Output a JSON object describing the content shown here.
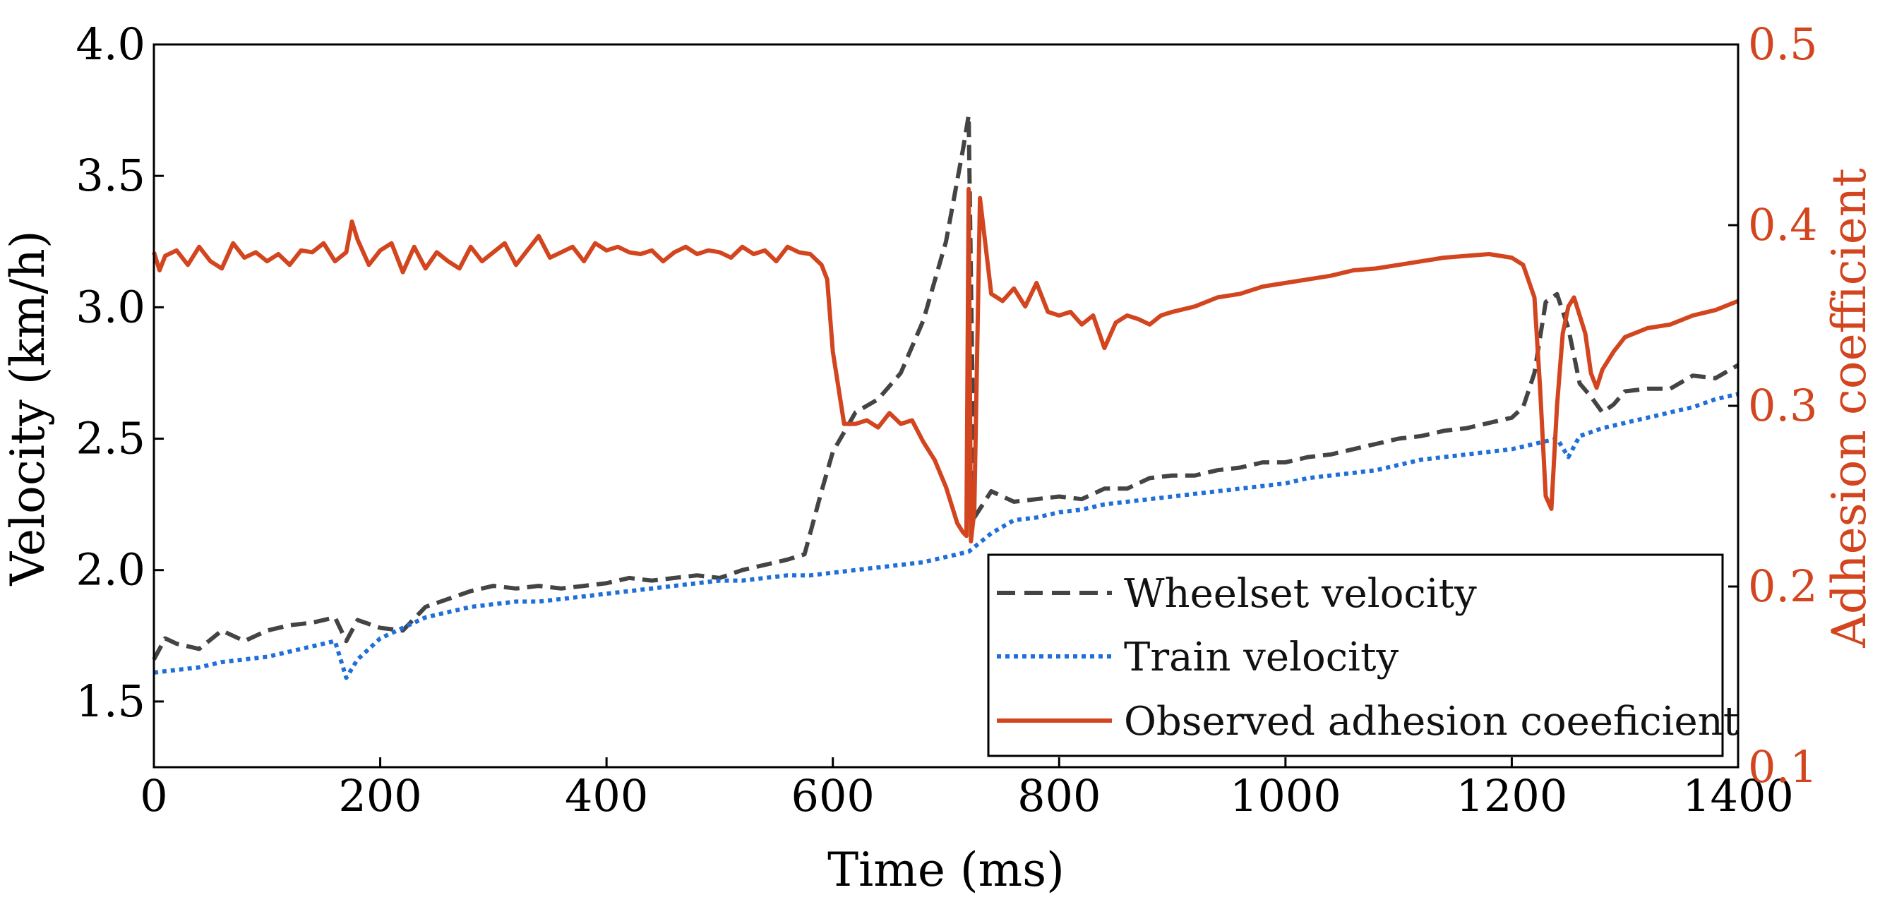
{
  "chart_data": {
    "type": "line",
    "title": "",
    "xlabel": "Time (ms)",
    "ylabel_left": "Velocity (km/h)",
    "ylabel_right": "Adhesion coefficient",
    "xlim": [
      0,
      1400
    ],
    "ylim_left": [
      1.25,
      4.0
    ],
    "ylim_right": [
      0.1,
      0.5
    ],
    "x_ticks": [
      "0",
      "200",
      "400",
      "600",
      "800",
      "1000",
      "1200",
      "1400"
    ],
    "y_ticks_left": [
      "1.5",
      "2.0",
      "2.5",
      "3.0",
      "3.5",
      "4.0"
    ],
    "y_ticks_right": [
      "0.1",
      "0.2",
      "0.3",
      "0.4",
      "0.5"
    ],
    "grid": false,
    "legend_position": "bottom-right",
    "colors": {
      "wheelset": "#444444",
      "train": "#1f6fd8",
      "adhesion": "#d2451e",
      "right_axis": "#d2451e"
    },
    "series": [
      {
        "name": "Wheelset velocity",
        "axis": "left",
        "style": "dashed",
        "x": [
          0,
          10,
          20,
          40,
          60,
          80,
          100,
          120,
          140,
          160,
          170,
          180,
          200,
          220,
          240,
          260,
          280,
          300,
          320,
          340,
          360,
          380,
          400,
          420,
          440,
          460,
          480,
          500,
          520,
          540,
          560,
          575,
          590,
          600,
          620,
          640,
          660,
          680,
          700,
          715,
          720,
          725,
          740,
          760,
          780,
          800,
          820,
          840,
          860,
          880,
          900,
          920,
          940,
          960,
          980,
          1000,
          1020,
          1040,
          1060,
          1080,
          1100,
          1120,
          1140,
          1160,
          1180,
          1200,
          1210,
          1220,
          1230,
          1240,
          1250,
          1260,
          1270,
          1280,
          1290,
          1300,
          1320,
          1340,
          1360,
          1380,
          1400
        ],
        "values": [
          1.66,
          1.74,
          1.72,
          1.7,
          1.77,
          1.73,
          1.77,
          1.79,
          1.8,
          1.82,
          1.73,
          1.81,
          1.78,
          1.77,
          1.86,
          1.89,
          1.92,
          1.94,
          1.93,
          1.94,
          1.93,
          1.94,
          1.95,
          1.97,
          1.96,
          1.97,
          1.98,
          1.97,
          2.0,
          2.02,
          2.04,
          2.06,
          2.3,
          2.45,
          2.6,
          2.65,
          2.75,
          2.95,
          3.25,
          3.6,
          3.73,
          2.2,
          2.3,
          2.26,
          2.27,
          2.28,
          2.27,
          2.31,
          2.31,
          2.35,
          2.36,
          2.36,
          2.38,
          2.39,
          2.41,
          2.41,
          2.43,
          2.44,
          2.46,
          2.48,
          2.5,
          2.51,
          2.53,
          2.54,
          2.56,
          2.58,
          2.62,
          2.75,
          3.02,
          3.05,
          2.92,
          2.71,
          2.66,
          2.6,
          2.63,
          2.68,
          2.69,
          2.69,
          2.74,
          2.73,
          2.78
        ]
      },
      {
        "name": "Train velocity",
        "axis": "left",
        "style": "dotted",
        "x": [
          0,
          20,
          40,
          60,
          80,
          100,
          120,
          140,
          160,
          170,
          180,
          200,
          220,
          240,
          260,
          280,
          300,
          320,
          340,
          360,
          380,
          400,
          420,
          440,
          460,
          480,
          500,
          520,
          540,
          560,
          580,
          600,
          620,
          640,
          660,
          680,
          700,
          720,
          740,
          760,
          780,
          800,
          820,
          840,
          860,
          880,
          900,
          920,
          940,
          960,
          980,
          1000,
          1020,
          1040,
          1060,
          1080,
          1100,
          1120,
          1140,
          1160,
          1180,
          1200,
          1220,
          1240,
          1250,
          1260,
          1280,
          1300,
          1320,
          1340,
          1360,
          1380,
          1400
        ],
        "values": [
          1.61,
          1.62,
          1.63,
          1.65,
          1.66,
          1.67,
          1.69,
          1.71,
          1.73,
          1.59,
          1.66,
          1.74,
          1.78,
          1.82,
          1.84,
          1.86,
          1.87,
          1.88,
          1.88,
          1.89,
          1.9,
          1.91,
          1.92,
          1.93,
          1.94,
          1.95,
          1.96,
          1.96,
          1.97,
          1.98,
          1.98,
          1.99,
          2.0,
          2.01,
          2.02,
          2.03,
          2.05,
          2.07,
          2.14,
          2.19,
          2.2,
          2.22,
          2.23,
          2.25,
          2.26,
          2.27,
          2.28,
          2.29,
          2.3,
          2.31,
          2.32,
          2.33,
          2.35,
          2.36,
          2.37,
          2.38,
          2.4,
          2.42,
          2.43,
          2.44,
          2.45,
          2.46,
          2.48,
          2.5,
          2.43,
          2.51,
          2.54,
          2.56,
          2.58,
          2.6,
          2.62,
          2.65,
          2.67
        ]
      },
      {
        "name": "Observed adhesion coeeficient",
        "axis": "right",
        "style": "solid",
        "x": [
          0,
          5,
          10,
          20,
          30,
          40,
          50,
          60,
          70,
          80,
          90,
          100,
          110,
          120,
          130,
          140,
          150,
          160,
          170,
          175,
          180,
          190,
          200,
          210,
          220,
          230,
          240,
          250,
          260,
          270,
          280,
          290,
          300,
          310,
          320,
          330,
          340,
          350,
          360,
          370,
          380,
          390,
          400,
          410,
          420,
          430,
          440,
          450,
          460,
          470,
          480,
          490,
          500,
          510,
          520,
          530,
          540,
          550,
          560,
          570,
          580,
          590,
          595,
          600,
          610,
          620,
          630,
          640,
          650,
          660,
          670,
          680,
          690,
          700,
          710,
          715,
          718,
          720,
          722,
          725,
          730,
          740,
          750,
          760,
          770,
          780,
          790,
          800,
          810,
          820,
          830,
          840,
          850,
          860,
          870,
          880,
          890,
          900,
          920,
          940,
          960,
          980,
          1000,
          1020,
          1040,
          1060,
          1080,
          1100,
          1120,
          1140,
          1160,
          1180,
          1200,
          1210,
          1220,
          1225,
          1230,
          1235,
          1240,
          1245,
          1250,
          1255,
          1260,
          1265,
          1270,
          1275,
          1280,
          1290,
          1300,
          1320,
          1340,
          1360,
          1380,
          1400
        ],
        "values": [
          0.385,
          0.375,
          0.383,
          0.386,
          0.378,
          0.388,
          0.38,
          0.376,
          0.39,
          0.382,
          0.385,
          0.38,
          0.384,
          0.378,
          0.386,
          0.385,
          0.39,
          0.38,
          0.385,
          0.402,
          0.392,
          0.378,
          0.386,
          0.39,
          0.374,
          0.388,
          0.376,
          0.385,
          0.38,
          0.376,
          0.388,
          0.38,
          0.385,
          0.39,
          0.378,
          0.386,
          0.394,
          0.382,
          0.385,
          0.388,
          0.38,
          0.39,
          0.386,
          0.388,
          0.385,
          0.384,
          0.386,
          0.38,
          0.385,
          0.388,
          0.384,
          0.386,
          0.385,
          0.382,
          0.388,
          0.384,
          0.386,
          0.38,
          0.388,
          0.385,
          0.384,
          0.378,
          0.37,
          0.33,
          0.29,
          0.29,
          0.292,
          0.288,
          0.296,
          0.29,
          0.292,
          0.28,
          0.27,
          0.255,
          0.235,
          0.23,
          0.228,
          0.42,
          0.225,
          0.242,
          0.415,
          0.362,
          0.358,
          0.365,
          0.355,
          0.368,
          0.352,
          0.35,
          0.352,
          0.345,
          0.35,
          0.332,
          0.346,
          0.35,
          0.348,
          0.345,
          0.35,
          0.352,
          0.355,
          0.36,
          0.362,
          0.366,
          0.368,
          0.37,
          0.372,
          0.375,
          0.376,
          0.378,
          0.38,
          0.382,
          0.383,
          0.384,
          0.382,
          0.378,
          0.36,
          0.31,
          0.25,
          0.243,
          0.3,
          0.34,
          0.355,
          0.36,
          0.35,
          0.34,
          0.318,
          0.31,
          0.32,
          0.33,
          0.338,
          0.343,
          0.345,
          0.35,
          0.353,
          0.358
        ]
      }
    ]
  }
}
